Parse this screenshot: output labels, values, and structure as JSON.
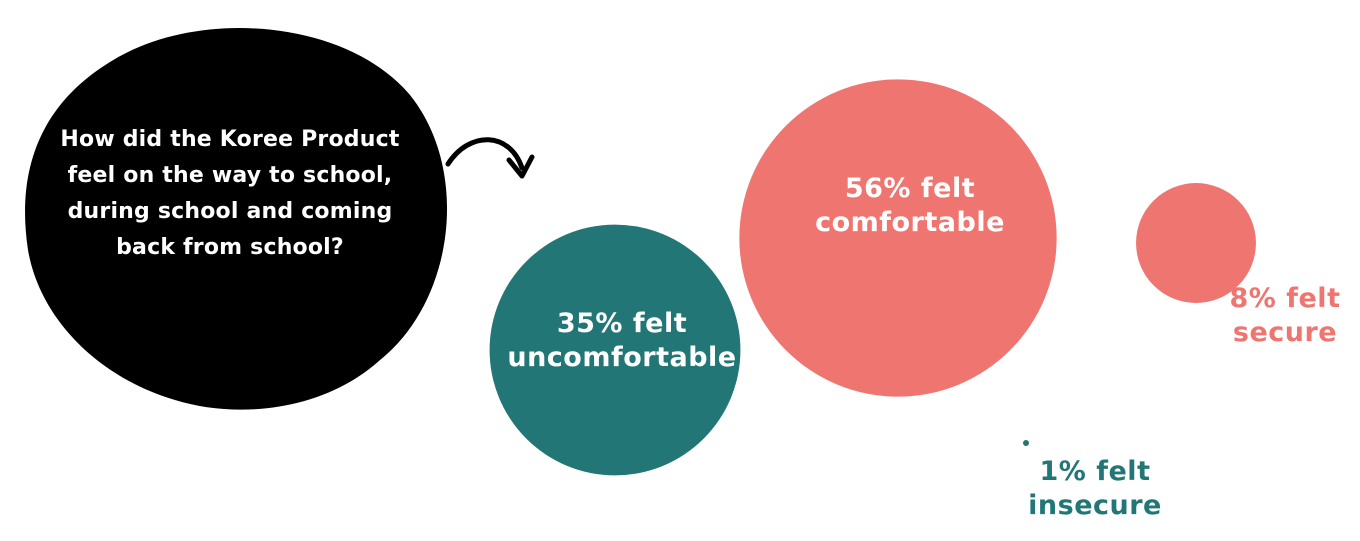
{
  "question": {
    "lines": [
      "How did the Koree Product",
      "feel on the way to school,",
      "during school and coming",
      "back from school?"
    ]
  },
  "colors": {
    "blob": "#000000",
    "teal": "#237676",
    "coral": "#ef7570",
    "text_on_dark": "#ffffff"
  },
  "chart_data": {
    "type": "bubble",
    "series": [
      {
        "label_pct": "35%",
        "label_word": "felt",
        "label_desc": "uncomfortable",
        "value": 35,
        "color": "#237676"
      },
      {
        "label_pct": "56%",
        "label_word": "felt",
        "label_desc": "comfortable",
        "value": 56,
        "color": "#ef7570"
      },
      {
        "label_pct": "8%",
        "label_word": "felt",
        "label_desc": "secure",
        "value": 8,
        "color": "#ef7570"
      },
      {
        "label_pct": "1%",
        "label_word": "felt",
        "label_desc": "insecure",
        "value": 1,
        "color": "#237676"
      }
    ]
  }
}
